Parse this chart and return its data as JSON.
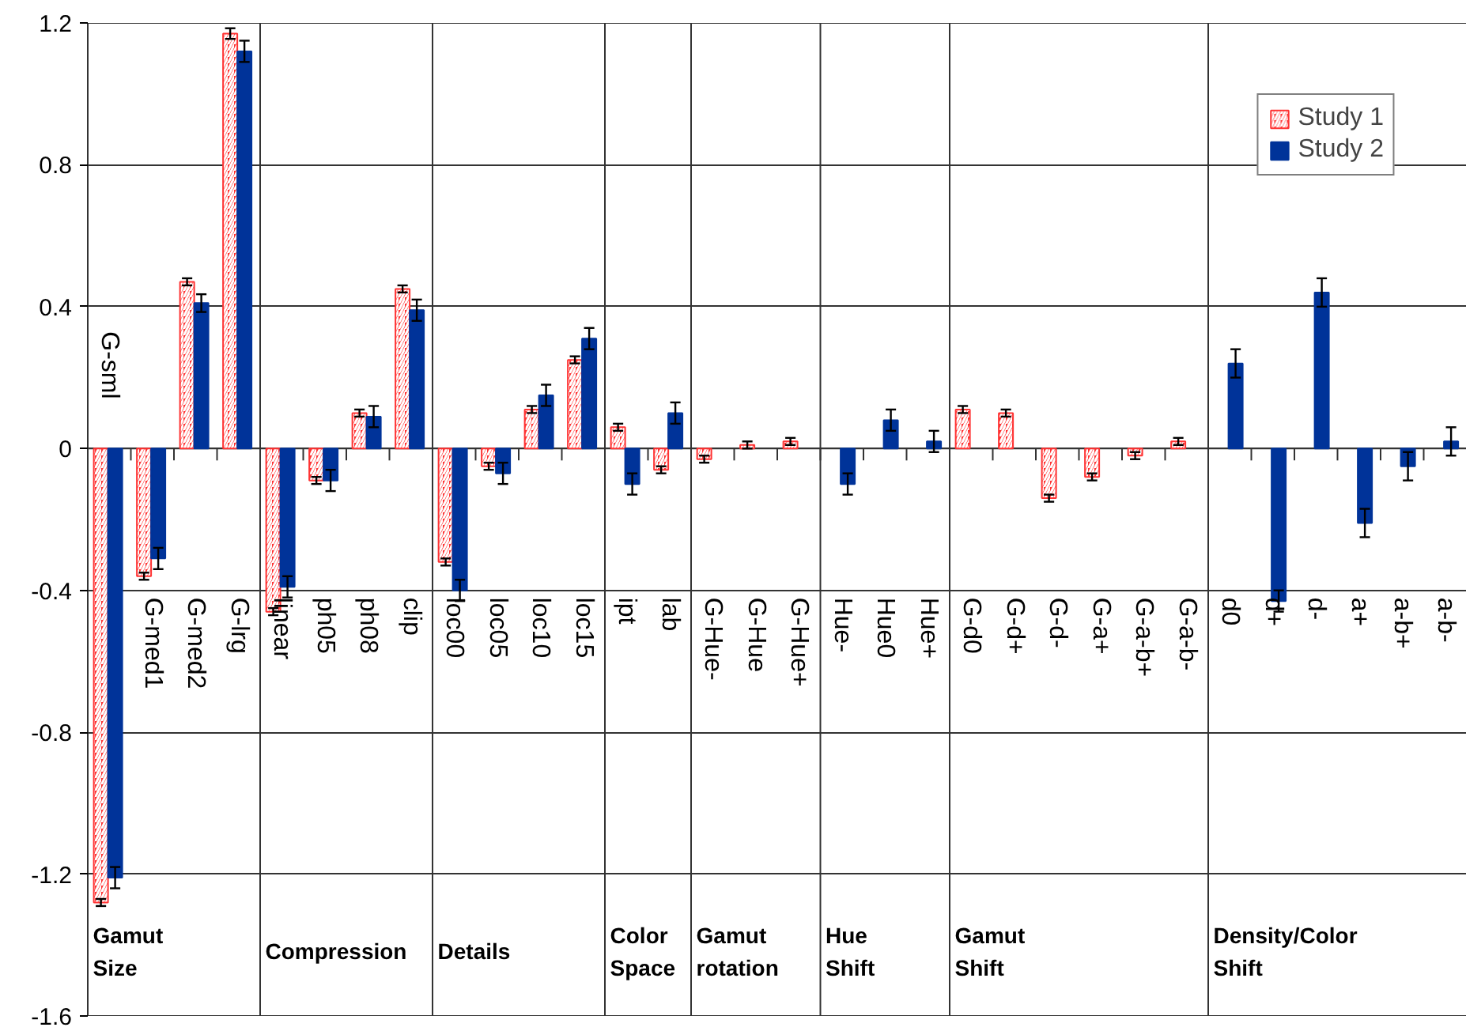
{
  "chart_data": {
    "type": "bar",
    "categories": [
      "G-sml",
      "G-med1",
      "G-med2",
      "G-lrg",
      "linear",
      "ph05",
      "ph08",
      "clip",
      "loc00",
      "loc05",
      "loc10",
      "loc15",
      "ipt",
      "lab",
      "G-Hue-",
      "G-Hue",
      "G-Hue+",
      "Hue-",
      "Hue0",
      "Hue+",
      "G-d0",
      "G-d+",
      "G-d-",
      "G-a+",
      "G-a-b+",
      "G-a-b-",
      "d0",
      "d+",
      "d-",
      "a+",
      "a-b+",
      "a-b-"
    ],
    "series": [
      {
        "name": "Study 1",
        "color": "#ff3333",
        "values": [
          -1.28,
          -0.36,
          0.47,
          1.17,
          -0.46,
          -0.09,
          0.1,
          0.45,
          -0.32,
          -0.05,
          0.11,
          0.25,
          0.06,
          -0.06,
          -0.03,
          0.01,
          0.02,
          null,
          null,
          null,
          0.11,
          0.1,
          -0.14,
          -0.08,
          -0.02,
          0.02,
          null,
          null,
          null,
          null,
          null,
          null
        ],
        "errors": [
          0.01,
          0.01,
          0.01,
          0.015,
          0.01,
          0.01,
          0.01,
          0.01,
          0.01,
          0.01,
          0.01,
          0.01,
          0.01,
          0.01,
          0.01,
          0.01,
          0.01,
          null,
          null,
          null,
          0.01,
          0.01,
          0.01,
          0.01,
          0.01,
          0.01,
          null,
          null,
          null,
          null,
          null,
          null
        ]
      },
      {
        "name": "Study 2",
        "color": "#003399",
        "values": [
          -1.21,
          -0.31,
          0.41,
          1.12,
          -0.39,
          -0.09,
          0.09,
          0.39,
          -0.4,
          -0.07,
          0.15,
          0.31,
          -0.1,
          0.1,
          null,
          null,
          null,
          -0.1,
          0.08,
          0.02,
          null,
          null,
          null,
          null,
          null,
          null,
          0.24,
          -0.43,
          0.44,
          -0.21,
          -0.05,
          0.02
        ],
        "errors": [
          0.03,
          0.03,
          0.025,
          0.03,
          0.03,
          0.03,
          0.03,
          0.03,
          0.03,
          0.03,
          0.03,
          0.03,
          0.03,
          0.03,
          null,
          null,
          null,
          0.03,
          0.03,
          0.03,
          null,
          null,
          null,
          null,
          null,
          null,
          0.04,
          0.03,
          0.04,
          0.04,
          0.04,
          0.04
        ]
      }
    ],
    "ylim": [
      -1.6,
      1.2
    ],
    "yticks": [
      -1.6,
      -1.2,
      -0.8,
      -0.4,
      0,
      0.4,
      0.8,
      1.2
    ],
    "grid": "y",
    "legend": "top right",
    "annotations": [
      "Gamut\nSize",
      "Compression",
      "Details",
      "Color\nSpace",
      "Gamut\nrotation",
      "Hue\nShift",
      "Gamut\nShift",
      "Density/Color\nShift"
    ]
  }
}
